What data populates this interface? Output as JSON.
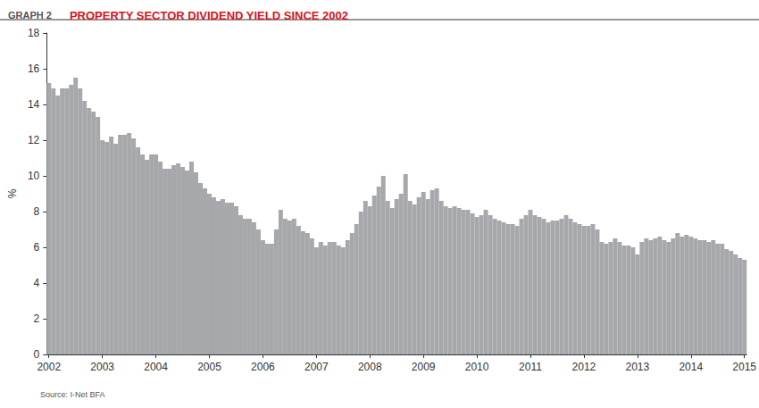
{
  "chart_data": {
    "type": "bar",
    "title": "PROPERTY SECTOR DIVIDEND YIELD SINCE 2002",
    "subtitle": "GRAPH 2",
    "ylabel": "%",
    "annotations": [
      "Source: I-Net BFA"
    ],
    "color": "#a6a8ab",
    "grid": false,
    "ylim": [
      0,
      18
    ],
    "yticks": [
      0,
      2,
      4,
      6,
      8,
      10,
      12,
      14,
      16,
      18
    ],
    "categories": [
      "2002",
      null,
      null,
      null,
      null,
      null,
      null,
      null,
      null,
      null,
      null,
      null,
      "2003",
      null,
      null,
      null,
      null,
      null,
      null,
      null,
      null,
      null,
      null,
      null,
      "2004",
      null,
      null,
      null,
      null,
      null,
      null,
      null,
      null,
      null,
      null,
      null,
      "2005",
      null,
      null,
      null,
      null,
      null,
      null,
      null,
      null,
      null,
      null,
      null,
      "2006",
      null,
      null,
      null,
      null,
      null,
      null,
      null,
      null,
      null,
      null,
      null,
      "2007",
      null,
      null,
      null,
      null,
      null,
      null,
      null,
      null,
      null,
      null,
      null,
      "2008",
      null,
      null,
      null,
      null,
      null,
      null,
      null,
      null,
      null,
      null,
      null,
      "2009",
      null,
      null,
      null,
      null,
      null,
      null,
      null,
      null,
      null,
      null,
      null,
      "2010",
      null,
      null,
      null,
      null,
      null,
      null,
      null,
      null,
      null,
      null,
      null,
      "2011",
      null,
      null,
      null,
      null,
      null,
      null,
      null,
      null,
      null,
      null,
      null,
      "2012",
      null,
      null,
      null,
      null,
      null,
      null,
      null,
      null,
      null,
      null,
      null,
      "2013",
      null,
      null,
      null,
      null,
      null,
      null,
      null,
      null,
      null,
      null,
      null,
      "2014",
      null,
      null,
      null,
      null,
      null,
      null,
      null,
      null,
      null,
      null,
      null,
      "2015"
    ],
    "values": [
      15.2,
      14.9,
      14.5,
      14.9,
      14.9,
      15.1,
      15.5,
      14.9,
      14.2,
      13.8,
      13.6,
      13.3,
      12.0,
      11.9,
      12.2,
      11.8,
      12.3,
      12.3,
      12.4,
      12.1,
      11.6,
      11.2,
      10.9,
      11.2,
      11.2,
      10.8,
      10.4,
      10.4,
      10.6,
      10.7,
      10.5,
      10.3,
      10.8,
      10.2,
      9.6,
      9.3,
      9.0,
      8.8,
      8.6,
      8.7,
      8.5,
      8.5,
      8.3,
      7.8,
      7.6,
      7.6,
      7.4,
      7.0,
      6.4,
      6.2,
      6.2,
      7.0,
      8.1,
      7.6,
      7.5,
      7.6,
      7.2,
      6.9,
      6.8,
      6.5,
      6.0,
      6.3,
      6.1,
      6.3,
      6.3,
      6.1,
      6.0,
      6.4,
      6.8,
      7.3,
      8.0,
      8.6,
      8.3,
      8.9,
      9.4,
      10.0,
      8.6,
      8.2,
      8.7,
      9.0,
      10.1,
      8.6,
      8.4,
      8.8,
      9.1,
      8.7,
      9.2,
      9.3,
      8.6,
      8.3,
      8.2,
      8.3,
      8.2,
      8.1,
      8.1,
      7.9,
      7.7,
      7.8,
      8.1,
      7.8,
      7.6,
      7.5,
      7.4,
      7.3,
      7.3,
      7.2,
      7.6,
      7.8,
      8.1,
      7.8,
      7.7,
      7.6,
      7.4,
      7.5,
      7.5,
      7.6,
      7.8,
      7.6,
      7.4,
      7.3,
      7.2,
      7.2,
      7.3,
      7.0,
      6.3,
      6.2,
      6.3,
      6.5,
      6.3,
      6.1,
      6.1,
      6.0,
      5.6,
      6.3,
      6.5,
      6.4,
      6.5,
      6.6,
      6.4,
      6.3,
      6.5,
      6.8,
      6.6,
      6.7,
      6.6,
      6.5,
      6.4,
      6.4,
      6.3,
      6.4,
      6.2,
      6.2,
      5.9,
      5.8,
      5.6,
      5.4,
      5.3
    ]
  }
}
